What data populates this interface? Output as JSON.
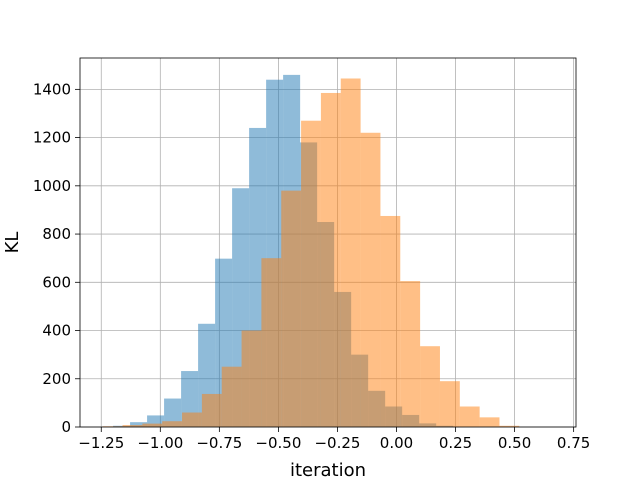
{
  "chart_data": {
    "type": "histogram",
    "title": "",
    "xlabel": "iteration",
    "ylabel": "KL",
    "xlim": [
      -1.34,
      0.76
    ],
    "ylim": [
      0,
      1530
    ],
    "grid": true,
    "xticks": [
      -1.25,
      -1.0,
      -0.75,
      -0.5,
      -0.25,
      0.0,
      0.25,
      0.5,
      0.75
    ],
    "xtick_labels": [
      "−1.25",
      "−1.00",
      "−0.75",
      "−0.50",
      "−0.25",
      "0.00",
      "0.25",
      "0.50",
      "0.75"
    ],
    "yticks": [
      0,
      200,
      400,
      600,
      800,
      1000,
      1200,
      1400
    ],
    "yticks_labels": [
      "0",
      "200",
      "400",
      "600",
      "800",
      "1000",
      "1200",
      "1400"
    ],
    "series": [
      {
        "color": "#1f77b4",
        "alpha": 0.5,
        "bin_edges": [
          -1.2,
          -1.128,
          -1.056,
          -0.984,
          -0.912,
          -0.84,
          -0.768,
          -0.696,
          -0.624,
          -0.552,
          -0.48,
          -0.408,
          -0.336,
          -0.264,
          -0.192,
          -0.12,
          -0.048,
          0.024,
          0.096,
          0.168,
          0.24
        ],
        "counts": [
          5,
          20,
          48,
          118,
          232,
          428,
          698,
          990,
          1240,
          1440,
          1460,
          1180,
          850,
          560,
          300,
          150,
          85,
          50,
          15,
          5
        ]
      },
      {
        "color": "#ff7f0e",
        "alpha": 0.5,
        "bin_edges": [
          -1.244,
          -1.16,
          -1.076,
          -0.992,
          -0.908,
          -0.824,
          -0.74,
          -0.656,
          -0.572,
          -0.488,
          -0.404,
          -0.32,
          -0.236,
          -0.152,
          -0.068,
          0.016,
          0.1,
          0.184,
          0.268,
          0.352,
          0.436,
          0.52
        ],
        "counts": [
          3,
          8,
          14,
          24,
          60,
          137,
          250,
          400,
          700,
          980,
          1270,
          1385,
          1445,
          1220,
          875,
          605,
          335,
          190,
          85,
          40,
          5
        ]
      }
    ]
  }
}
